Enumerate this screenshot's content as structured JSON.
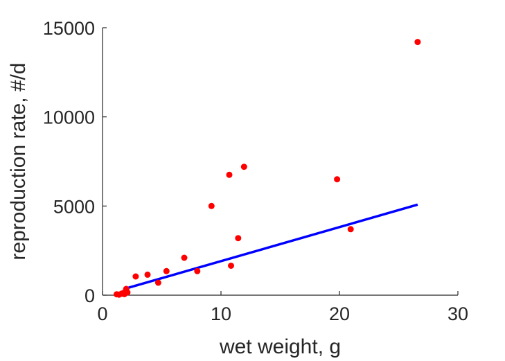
{
  "chart_data": {
    "type": "scatter",
    "title": "",
    "xlabel": "wet weight, g",
    "ylabel": "reproduction rate, #/d",
    "xlim": [
      0,
      30
    ],
    "ylim": [
      0,
      15000
    ],
    "x_ticks": [
      0,
      10,
      20,
      30
    ],
    "x_tick_labels": [
      "0",
      "10",
      "20",
      "30"
    ],
    "y_ticks": [
      0,
      5000,
      10000,
      15000
    ],
    "y_tick_labels": [
      "0",
      "5000",
      "10000",
      "15000"
    ],
    "grid": false,
    "legend": "none",
    "series": [
      {
        "type": "scatter",
        "color": "#ff0000",
        "points": [
          {
            "x": 1.2,
            "y": 50
          },
          {
            "x": 1.4,
            "y": 30
          },
          {
            "x": 1.6,
            "y": 80
          },
          {
            "x": 1.75,
            "y": 120
          },
          {
            "x": 1.85,
            "y": 60
          },
          {
            "x": 1.95,
            "y": 200
          },
          {
            "x": 2.0,
            "y": 350
          },
          {
            "x": 2.1,
            "y": 150
          },
          {
            "x": 2.8,
            "y": 1050
          },
          {
            "x": 3.8,
            "y": 1150
          },
          {
            "x": 4.7,
            "y": 700
          },
          {
            "x": 5.4,
            "y": 1350
          },
          {
            "x": 6.9,
            "y": 2100
          },
          {
            "x": 8.0,
            "y": 1350
          },
          {
            "x": 9.2,
            "y": 5000
          },
          {
            "x": 10.7,
            "y": 6750
          },
          {
            "x": 10.85,
            "y": 1650
          },
          {
            "x": 11.45,
            "y": 3200
          },
          {
            "x": 11.95,
            "y": 7200
          },
          {
            "x": 19.8,
            "y": 6500
          },
          {
            "x": 20.95,
            "y": 3700
          },
          {
            "x": 26.6,
            "y": 14200
          }
        ]
      },
      {
        "type": "line",
        "color": "#0000ff",
        "points": [
          {
            "x": 1.6,
            "y": 0
          },
          {
            "x": 1.9,
            "y": 80
          },
          {
            "x": 2.0,
            "y": 200
          },
          {
            "x": 2.2,
            "y": 420
          },
          {
            "x": 26.6,
            "y": 5080
          }
        ]
      }
    ]
  }
}
